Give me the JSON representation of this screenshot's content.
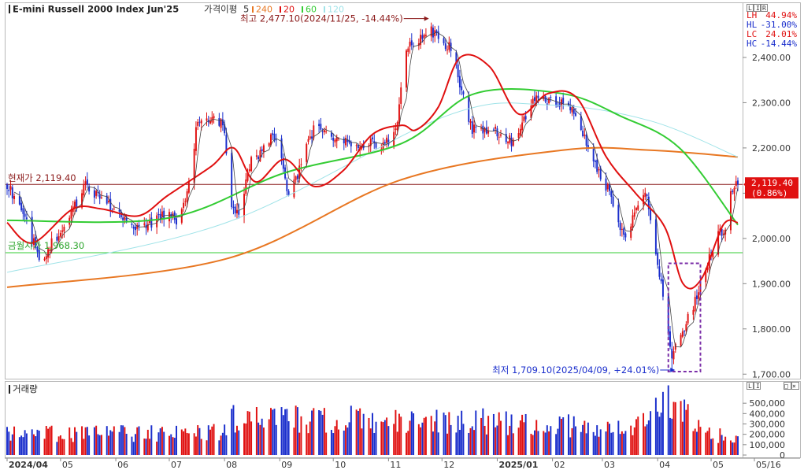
{
  "header": {
    "title": "E-mini Russell 2000 Index Jun'25",
    "indicator_label": "가격이평",
    "period_short": "5",
    "ma_legend": [
      {
        "label": "240",
        "color": "#e87722"
      },
      {
        "label": "20",
        "color": "#e01010"
      },
      {
        "label": "60",
        "color": "#33cc33"
      },
      {
        "label": "120",
        "color": "#9fe3e8"
      }
    ],
    "corner_buttons": [
      "L",
      "I",
      "R"
    ]
  },
  "stats": [
    {
      "label": "LH",
      "value": "44.94%"
    },
    {
      "label": "HL",
      "value": "-31.00%"
    },
    {
      "label": "LC",
      "value": "24.01%"
    },
    {
      "label": "HC",
      "value": "-14.44%"
    }
  ],
  "annotations": {
    "high": "최고 2,477.10(2024/11/25, -14.44%)",
    "low": "최저 1,709.10(2025/04/09, +24.01%)",
    "current_label": "현재가 2,119.40",
    "pivot_label": "금월시가 1,968.30",
    "current_price_tag": "2,119.40",
    "current_change_tag": "(0.86%)"
  },
  "volume_panel": {
    "title": "거래량",
    "corner_buttons": [
      "L",
      "I"
    ],
    "window_buttons": [
      "□",
      "×"
    ]
  },
  "colors": {
    "up": "#e01010",
    "down": "#1a2ecc",
    "ma5": "#444444",
    "ma20": "#e01010",
    "ma60": "#33cc33",
    "ma120": "#9fe3e8",
    "ma240": "#e87722",
    "current_line": "#8b1a1a",
    "pivot_line": "#33cc33",
    "low_box": "#7b2fa8"
  },
  "chart_data": {
    "type": "candlestick",
    "title": "E-mini Russell 2000 Index Jun'25",
    "y_axis": {
      "ticks": [
        "1,700.00",
        "1,800.00",
        "1,900.00",
        "2,000.00",
        "2,100.00",
        "2,200.00",
        "2,300.00",
        "2,400.00"
      ],
      "range": [
        1690,
        2520
      ]
    },
    "volume_axis": {
      "ticks": [
        "0",
        "100,000",
        "200,000",
        "300,000",
        "400,000",
        "500,000"
      ],
      "range": [
        0,
        600000
      ]
    },
    "x_axis_labels": [
      "2024/04",
      "05",
      "06",
      "07",
      "08",
      "09",
      "10",
      "11",
      "12",
      "2025/01",
      "02",
      "03",
      "04",
      "05",
      "05/16"
    ],
    "current_price": 2119.4,
    "current_change_pct": 0.86,
    "month_open": 1968.3,
    "period_high": {
      "value": 2477.1,
      "date": "2024/11/25",
      "pct": -14.44
    },
    "period_low": {
      "value": 1709.1,
      "date": "2025/04/09",
      "pct": 24.01
    },
    "anchors": [
      {
        "date": "2024/04/01",
        "close": 2120
      },
      {
        "date": "2024/04/12",
        "close": 2040
      },
      {
        "date": "2024/04/19",
        "close": 1950
      },
      {
        "date": "2024/04/30",
        "close": 2010
      },
      {
        "date": "2024/05/10",
        "close": 2080
      },
      {
        "date": "2024/05/15",
        "close": 2120
      },
      {
        "date": "2024/05/31",
        "close": 2060
      },
      {
        "date": "2024/06/14",
        "close": 2020
      },
      {
        "date": "2024/06/28",
        "close": 2050
      },
      {
        "date": "2024/07/05",
        "close": 2040
      },
      {
        "date": "2024/07/10",
        "close": 2080
      },
      {
        "date": "2024/07/17",
        "close": 2260
      },
      {
        "date": "2024/07/31",
        "close": 2260
      },
      {
        "date": "2024/08/05",
        "close": 2080
      },
      {
        "date": "2024/08/09",
        "close": 2050
      },
      {
        "date": "2024/08/16",
        "close": 2170
      },
      {
        "date": "2024/08/30",
        "close": 2230
      },
      {
        "date": "2024/09/06",
        "close": 2090
      },
      {
        "date": "2024/09/20",
        "close": 2240
      },
      {
        "date": "2024/09/30",
        "close": 2230
      },
      {
        "date": "2024/10/15",
        "close": 2210
      },
      {
        "date": "2024/10/31",
        "close": 2210
      },
      {
        "date": "2024/11/05",
        "close": 2240
      },
      {
        "date": "2024/11/11",
        "close": 2420
      },
      {
        "date": "2024/11/25",
        "close": 2460
      },
      {
        "date": "2024/12/06",
        "close": 2420
      },
      {
        "date": "2024/12/18",
        "close": 2240
      },
      {
        "date": "2024/12/31",
        "close": 2240
      },
      {
        "date": "2025/01/10",
        "close": 2210
      },
      {
        "date": "2025/01/23",
        "close": 2320
      },
      {
        "date": "2025/01/31",
        "close": 2300
      },
      {
        "date": "2025/02/12",
        "close": 2290
      },
      {
        "date": "2025/02/21",
        "close": 2200
      },
      {
        "date": "2025/03/04",
        "close": 2110
      },
      {
        "date": "2025/03/13",
        "close": 2000
      },
      {
        "date": "2025/03/25",
        "close": 2110
      },
      {
        "date": "2025/04/03",
        "close": 1900
      },
      {
        "date": "2025/04/09",
        "close": 1740
      },
      {
        "date": "2025/04/21",
        "close": 1850
      },
      {
        "date": "2025/04/30",
        "close": 1960
      },
      {
        "date": "2025/05/06",
        "close": 2020
      },
      {
        "date": "2025/05/09",
        "close": 2010
      },
      {
        "date": "2025/05/12",
        "close": 2110
      },
      {
        "date": "2025/05/16",
        "close": 2119.4
      }
    ],
    "moving_averages": [
      {
        "name": "240",
        "points": [
          [
            0.0,
            1892
          ],
          [
            0.3,
            1955
          ],
          [
            0.54,
            2130
          ],
          [
            0.76,
            2195
          ],
          [
            0.88,
            2195
          ],
          [
            1.0,
            2180
          ]
        ]
      },
      {
        "name": "120",
        "points": [
          [
            0.0,
            1925
          ],
          [
            0.3,
            2035
          ],
          [
            0.6,
            2270
          ],
          [
            0.74,
            2295
          ],
          [
            0.88,
            2260
          ],
          [
            1.0,
            2180
          ]
        ]
      },
      {
        "name": "60",
        "points": [
          [
            0.0,
            2040
          ],
          [
            0.22,
            2045
          ],
          [
            0.38,
            2145
          ],
          [
            0.54,
            2210
          ],
          [
            0.64,
            2320
          ],
          [
            0.76,
            2320
          ],
          [
            0.84,
            2270
          ],
          [
            0.92,
            2200
          ],
          [
            1.0,
            2030
          ]
        ]
      },
      {
        "name": "20",
        "points": [
          [
            0.0,
            2035
          ],
          [
            0.035,
            1990
          ],
          [
            0.09,
            2065
          ],
          [
            0.13,
            2065
          ],
          [
            0.18,
            2050
          ],
          [
            0.22,
            2095
          ],
          [
            0.28,
            2160
          ],
          [
            0.31,
            2200
          ],
          [
            0.34,
            2125
          ],
          [
            0.38,
            2175
          ],
          [
            0.42,
            2115
          ],
          [
            0.46,
            2150
          ],
          [
            0.5,
            2230
          ],
          [
            0.54,
            2250
          ],
          [
            0.56,
            2240
          ],
          [
            0.59,
            2290
          ],
          [
            0.62,
            2400
          ],
          [
            0.66,
            2380
          ],
          [
            0.7,
            2275
          ],
          [
            0.74,
            2320
          ],
          [
            0.78,
            2310
          ],
          [
            0.82,
            2180
          ],
          [
            0.86,
            2100
          ],
          [
            0.9,
            2025
          ],
          [
            0.925,
            1900
          ],
          [
            0.95,
            1910
          ],
          [
            0.98,
            2030
          ],
          [
            1.0,
            2035
          ]
        ]
      }
    ],
    "volume_profile": [
      {
        "date": "2024/04/01",
        "volume": 200000
      },
      {
        "date": "2024/07/31",
        "volume": 220000
      },
      {
        "date": "2024/08/05",
        "volume": 350000
      },
      {
        "date": "2024/12/18",
        "volume": 330000
      },
      {
        "date": "2025/03/20",
        "volume": 250000
      },
      {
        "date": "2025/04/07",
        "volume": 560000
      },
      {
        "date": "2025/04/09",
        "volume": 520000
      },
      {
        "date": "2025/04/25",
        "volume": 240000
      },
      {
        "date": "2025/05/16",
        "volume": 140000
      }
    ]
  }
}
